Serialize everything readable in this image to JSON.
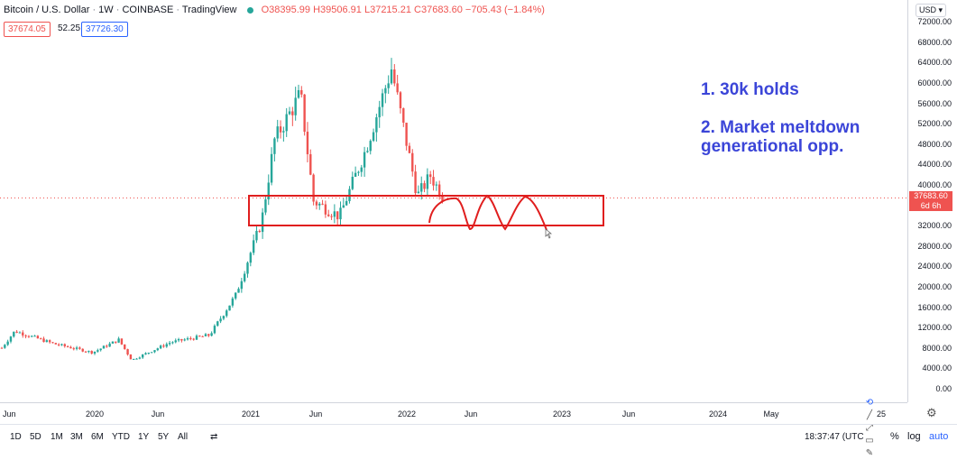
{
  "header": {
    "symbol": "Bitcoin / U.S. Dollar",
    "interval": "1W",
    "exchange": "COINBASE",
    "source": "TradingView",
    "ohlc": "O38395.99 H39506.91 L37215.21 C37683.60 −705.43 (−1.84%)",
    "bid": "37674.05",
    "spread": "52.25",
    "ask": "37726.30"
  },
  "price_axis": {
    "currency": "USD",
    "ticks": [
      "72000.00",
      "68000.00",
      "64000.00",
      "60000.00",
      "56000.00",
      "52000.00",
      "48000.00",
      "44000.00",
      "40000.00",
      "36000.00",
      "32000.00",
      "28000.00",
      "24000.00",
      "20000.00",
      "16000.00",
      "12000.00",
      "8000.00",
      "4000.00",
      "0.00"
    ],
    "last_price": "37683.60",
    "countdown": "6d 6h"
  },
  "time_axis": {
    "labels": [
      "Jun",
      "2020",
      "Jun",
      "2021",
      "Jun",
      "2022",
      "Jun",
      "2023",
      "Jun",
      "2024",
      "May",
      "25"
    ]
  },
  "bottom_bar": {
    "timeframes": [
      "1D",
      "5D",
      "1M",
      "3M",
      "6M",
      "YTD",
      "1Y",
      "5Y",
      "All"
    ],
    "clock": "18:37:47 (UTC",
    "percent": "%",
    "log": "log",
    "auto": "auto"
  },
  "annotations": {
    "note1": "1. 30k holds",
    "note2_line1": "2. Market meltdown",
    "note2_line2": "generational opp."
  },
  "colors": {
    "up": "#26a69a",
    "down": "#ef5350",
    "drawing": "#e01e1e",
    "note": "#3b45d8",
    "accent": "#2962ff"
  },
  "chart_data": {
    "type": "candlestick",
    "interval": "1W",
    "ylim": [
      0,
      76000
    ],
    "last_price": 37683.6,
    "zone": [
      31500,
      40000
    ],
    "x_range": [
      "2019-05",
      "2025-03"
    ],
    "anchors": [
      {
        "date": "2019-05",
        "price": 8200
      },
      {
        "date": "2019-06",
        "price": 11500
      },
      {
        "date": "2019-09",
        "price": 9000
      },
      {
        "date": "2019-12",
        "price": 7300
      },
      {
        "date": "2020-02",
        "price": 9800
      },
      {
        "date": "2020-03",
        "price": 5800
      },
      {
        "date": "2020-06",
        "price": 9300
      },
      {
        "date": "2020-09",
        "price": 10700
      },
      {
        "date": "2020-11",
        "price": 18500
      },
      {
        "date": "2021-01",
        "price": 33000
      },
      {
        "date": "2021-02",
        "price": 49000
      },
      {
        "date": "2021-04",
        "price": 58000
      },
      {
        "date": "2021-05",
        "price": 37000
      },
      {
        "date": "2021-07",
        "price": 34000
      },
      {
        "date": "2021-09",
        "price": 47000
      },
      {
        "date": "2021-11",
        "price": 63000
      },
      {
        "date": "2022-01",
        "price": 38000
      },
      {
        "date": "2022-02",
        "price": 42000
      },
      {
        "date": "2022-03",
        "price": 37683.6
      }
    ]
  }
}
